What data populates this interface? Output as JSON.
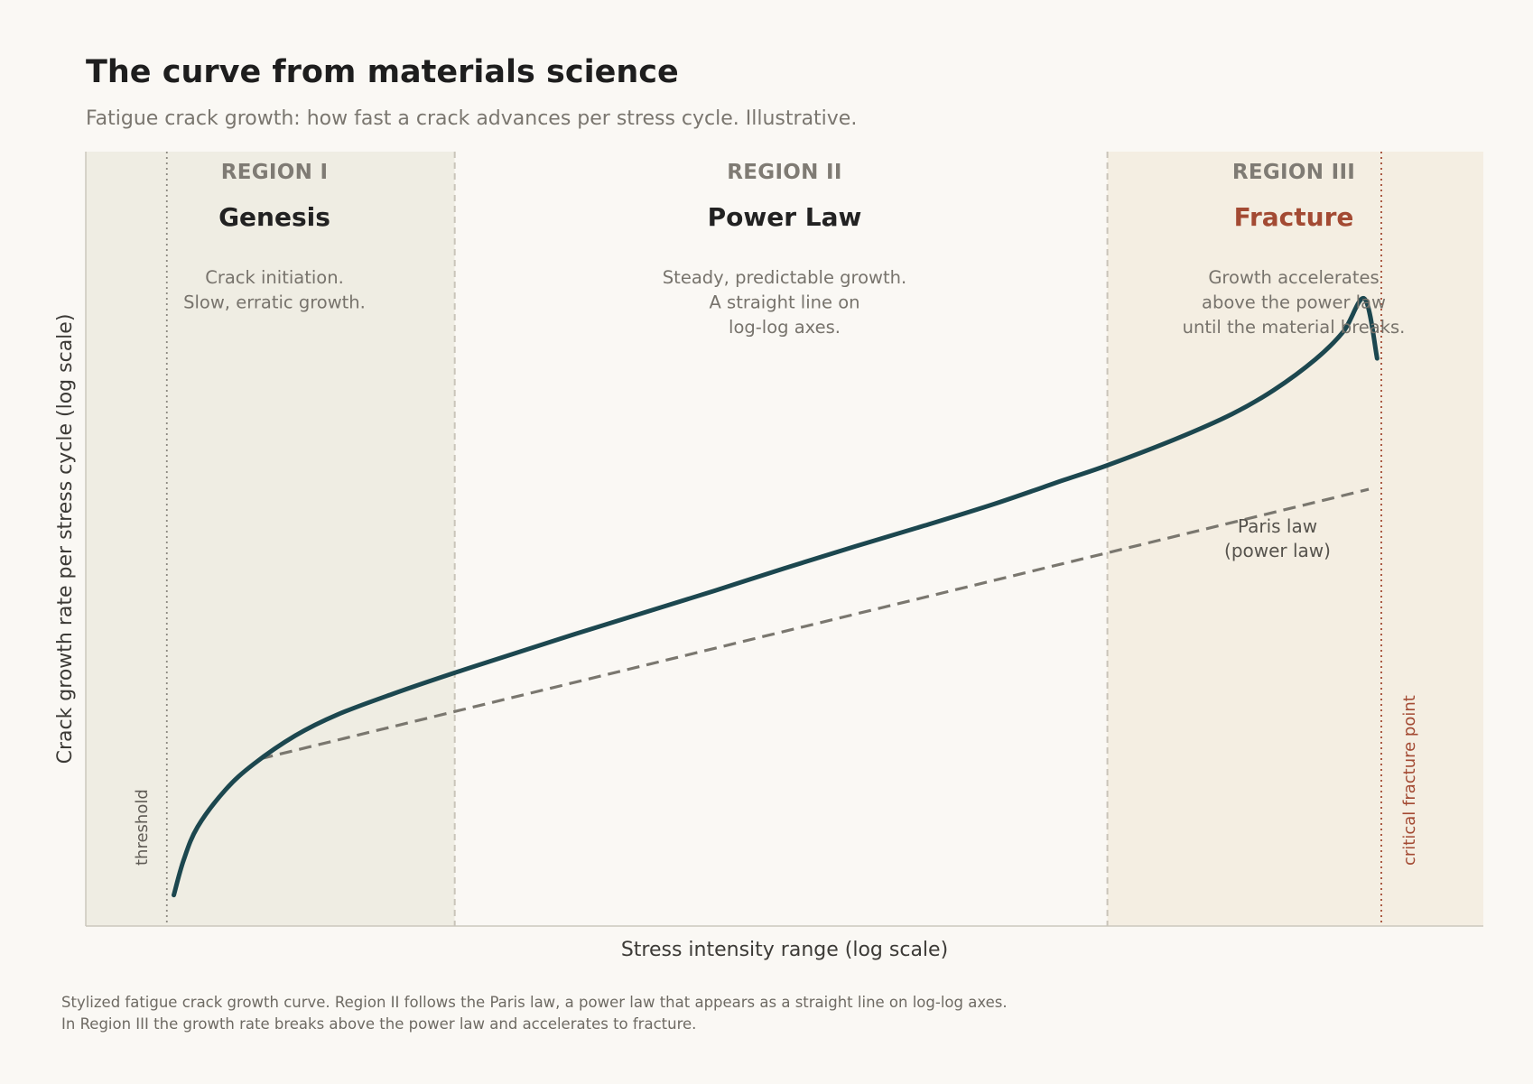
{
  "header": {
    "title": "The curve from materials science",
    "subtitle": "Fatigue crack growth: how fast a crack advances per stress cycle. Illustrative."
  },
  "caption": {
    "line1": "Stylized fatigue crack growth curve. Region II follows the Paris law, a power law that appears as a straight line on log-log axes.",
    "line2": "In Region III the growth rate breaks above the power law and accelerates to fracture."
  },
  "colors": {
    "background": "#faf8f4",
    "region1_fill": "#efede3",
    "region2_fill": "#faf8f4",
    "region3_fill": "#f4eee2",
    "curve": "#1c474f",
    "paris_line": "#7a776f",
    "accent_fracture": "#a34a33",
    "boundary": "#c9c4b9"
  },
  "chart_data": {
    "type": "line",
    "title": "The curve from materials science",
    "subtitle": "Fatigue crack growth: how fast a crack advances per stress cycle. Illustrative.",
    "xlabel": "Stress intensity range  (log scale)",
    "ylabel": "Crack growth rate per stress cycle  (log scale)",
    "xscale": "log",
    "yscale": "log",
    "tick_labels": "none",
    "xlim": [
      0,
      100
    ],
    "ylim": [
      0,
      100
    ],
    "grid": false,
    "legend": "none",
    "regions": [
      {
        "label": "REGION I",
        "name": "Genesis",
        "desc": [
          "Crack initiation.",
          "Slow, erratic growth."
        ],
        "x_start": 0,
        "x_end": 26.4,
        "highlight": false
      },
      {
        "label": "REGION II",
        "name": "Power Law",
        "desc": [
          "Steady, predictable growth.",
          "A straight line on",
          "log-log axes."
        ],
        "x_start": 26.4,
        "x_end": 73.1,
        "highlight": false
      },
      {
        "label": "REGION III",
        "name": "Fracture",
        "desc": [
          "Growth accelerates",
          "above the power law",
          "until the material breaks."
        ],
        "x_start": 73.1,
        "x_end": 100,
        "highlight": true
      }
    ],
    "markers": [
      {
        "label": "threshold",
        "x": 5.8,
        "style": "dotted"
      },
      {
        "label": "critical fracture point",
        "x": 92.7,
        "style": "dotted"
      }
    ],
    "series": [
      {
        "kind": "measured",
        "x": [
          6.3,
          7,
          8,
          10,
          12,
          15,
          18,
          22,
          26.4,
          30,
          35,
          40,
          45,
          50,
          55,
          60,
          65,
          70,
          73.1,
          78,
          82,
          85,
          88,
          90,
          91.5,
          92.4
        ],
        "y": [
          4.0,
          8.5,
          12.8,
          17.6,
          20.9,
          24.6,
          27.3,
          30.0,
          32.7,
          34.8,
          37.7,
          40.5,
          43.3,
          46.2,
          49.0,
          51.7,
          54.5,
          57.6,
          59.5,
          62.9,
          66.1,
          69.2,
          73.2,
          76.8,
          81.0,
          73.3
        ]
      },
      {
        "name": "Paris law",
        "note": "(power law)",
        "kind": "fit",
        "x": [
          12.5,
          91.8
        ],
        "y": [
          21.6,
          56.4
        ]
      }
    ]
  }
}
